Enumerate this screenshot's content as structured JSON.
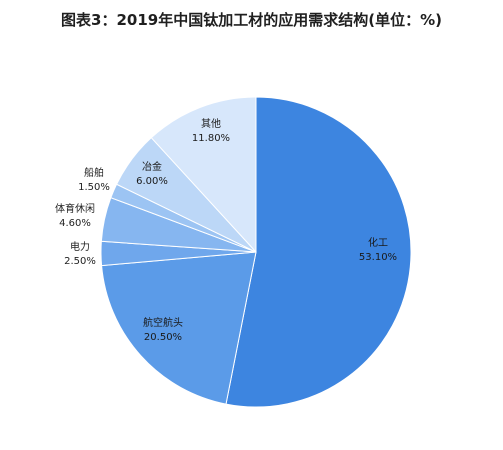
{
  "chart_data": {
    "type": "pie",
    "title": "图表3：2019年中国钛加工材的应用需求结构(单位：%)",
    "slices": [
      {
        "name": "化工",
        "value": 53.1,
        "label": "53.10%",
        "color": "#3d85e0"
      },
      {
        "name": "航空航头",
        "value": 20.5,
        "label": "20.50%",
        "color": "#5b9be8"
      },
      {
        "name": "电力",
        "value": 2.5,
        "label": "2.50%",
        "color": "#6fa7ec"
      },
      {
        "name": "体育休闲",
        "value": 4.6,
        "label": "4.60%",
        "color": "#86b6f0"
      },
      {
        "name": "船舶",
        "value": 1.5,
        "label": "1.50%",
        "color": "#9cc4f3"
      },
      {
        "name": "冶金",
        "value": 6.0,
        "label": "6.00%",
        "color": "#bcd7f7"
      },
      {
        "name": "其他",
        "value": 11.8,
        "label": "11.80%",
        "color": "#d7e7fb"
      }
    ],
    "start": "12 o'clock",
    "direction": "clockwise",
    "legend": "none"
  }
}
